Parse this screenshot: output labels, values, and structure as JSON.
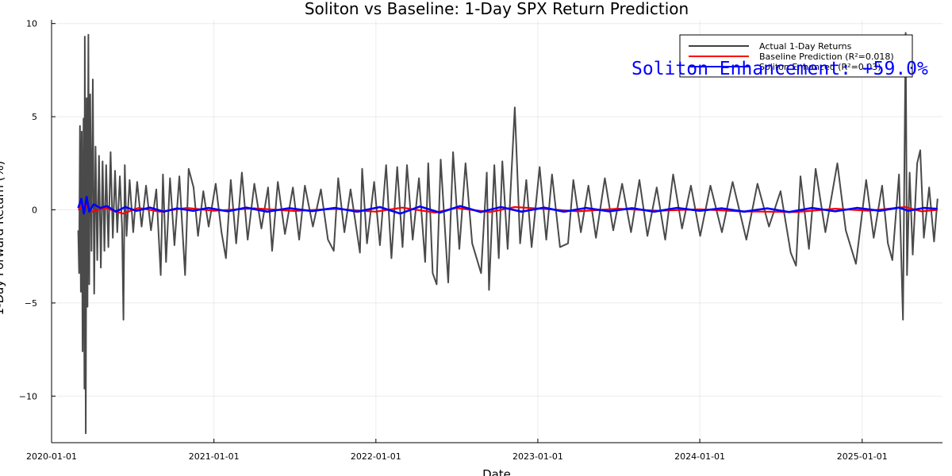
{
  "chart_data": {
    "type": "line",
    "title": "Soliton vs Baseline: 1-Day SPX Return Prediction",
    "xlabel": "Date",
    "ylabel": "1-Day Forward Return (%)",
    "x_range": [
      "2020-01-01",
      "2025-07-01"
    ],
    "ylim": [
      -12.5,
      10.2
    ],
    "x_ticks": [
      "2020-01-01",
      "2021-01-01",
      "2022-01-01",
      "2023-01-01",
      "2024-01-01",
      "2025-01-01"
    ],
    "y_ticks": [
      10,
      5,
      0,
      -5,
      -10
    ],
    "grid": true,
    "legend_position": "top-right",
    "annotation": {
      "text": "Soliton Enhancement: +59.0%",
      "color": "#0000ff"
    },
    "series": [
      {
        "name": "Actual 1-Day Returns",
        "color": "#404040",
        "points": [
          [
            "2020-03-01",
            -1.1
          ],
          [
            "2020-03-03",
            -3.4
          ],
          [
            "2020-03-05",
            4.5
          ],
          [
            "2020-03-07",
            -4.4
          ],
          [
            "2020-03-09",
            4.2
          ],
          [
            "2020-03-11",
            -7.6
          ],
          [
            "2020-03-13",
            4.9
          ],
          [
            "2020-03-15",
            -9.6
          ],
          [
            "2020-03-16",
            9.3
          ],
          [
            "2020-03-18",
            -12.0
          ],
          [
            "2020-03-20",
            6.0
          ],
          [
            "2020-03-22",
            -5.2
          ],
          [
            "2020-03-24",
            9.4
          ],
          [
            "2020-03-26",
            -4.0
          ],
          [
            "2020-03-28",
            6.2
          ],
          [
            "2020-03-31",
            -2.2
          ],
          [
            "2020-04-03",
            7.0
          ],
          [
            "2020-04-06",
            -4.5
          ],
          [
            "2020-04-09",
            3.4
          ],
          [
            "2020-04-13",
            -2.7
          ],
          [
            "2020-04-17",
            2.9
          ],
          [
            "2020-04-21",
            -3.1
          ],
          [
            "2020-04-25",
            2.6
          ],
          [
            "2020-04-29",
            -2.2
          ],
          [
            "2020-05-03",
            2.4
          ],
          [
            "2020-05-08",
            -2.0
          ],
          [
            "2020-05-13",
            3.1
          ],
          [
            "2020-05-18",
            -1.5
          ],
          [
            "2020-05-23",
            2.1
          ],
          [
            "2020-05-28",
            -1.2
          ],
          [
            "2020-06-03",
            1.8
          ],
          [
            "2020-06-08",
            -1.0
          ],
          [
            "2020-06-11",
            -5.9
          ],
          [
            "2020-06-14",
            2.4
          ],
          [
            "2020-06-18",
            -1.4
          ],
          [
            "2020-06-25",
            1.6
          ],
          [
            "2020-07-03",
            -1.2
          ],
          [
            "2020-07-12",
            1.5
          ],
          [
            "2020-07-22",
            -0.9
          ],
          [
            "2020-08-01",
            1.3
          ],
          [
            "2020-08-12",
            -1.1
          ],
          [
            "2020-08-24",
            1.1
          ],
          [
            "2020-09-03",
            -3.5
          ],
          [
            "2020-09-08",
            1.9
          ],
          [
            "2020-09-15",
            -2.8
          ],
          [
            "2020-09-24",
            1.7
          ],
          [
            "2020-10-04",
            -1.9
          ],
          [
            "2020-10-15",
            1.8
          ],
          [
            "2020-10-28",
            -3.5
          ],
          [
            "2020-11-05",
            2.2
          ],
          [
            "2020-11-16",
            1.2
          ],
          [
            "2020-11-26",
            -1.4
          ],
          [
            "2020-12-08",
            1.0
          ],
          [
            "2020-12-20",
            -0.9
          ],
          [
            "2021-01-05",
            1.4
          ],
          [
            "2021-01-18",
            -1.2
          ],
          [
            "2021-01-28",
            -2.6
          ],
          [
            "2021-02-08",
            1.6
          ],
          [
            "2021-02-20",
            -1.8
          ],
          [
            "2021-03-05",
            2.0
          ],
          [
            "2021-03-18",
            -1.6
          ],
          [
            "2021-04-02",
            1.4
          ],
          [
            "2021-04-18",
            -1.0
          ],
          [
            "2021-05-03",
            1.2
          ],
          [
            "2021-05-12",
            -2.2
          ],
          [
            "2021-05-25",
            1.5
          ],
          [
            "2021-06-10",
            -1.3
          ],
          [
            "2021-06-28",
            1.2
          ],
          [
            "2021-07-12",
            -1.6
          ],
          [
            "2021-07-25",
            1.3
          ],
          [
            "2021-08-12",
            -0.9
          ],
          [
            "2021-08-30",
            1.1
          ],
          [
            "2021-09-15",
            -1.6
          ],
          [
            "2021-09-28",
            -2.2
          ],
          [
            "2021-10-08",
            1.7
          ],
          [
            "2021-10-22",
            -1.2
          ],
          [
            "2021-11-05",
            1.1
          ],
          [
            "2021-11-26",
            -2.3
          ],
          [
            "2021-12-01",
            2.2
          ],
          [
            "2021-12-12",
            -1.8
          ],
          [
            "2021-12-28",
            1.5
          ],
          [
            "2022-01-10",
            -1.9
          ],
          [
            "2022-01-24",
            2.4
          ],
          [
            "2022-02-05",
            -2.6
          ],
          [
            "2022-02-18",
            2.3
          ],
          [
            "2022-03-02",
            -2.0
          ],
          [
            "2022-03-12",
            2.4
          ],
          [
            "2022-03-25",
            -1.6
          ],
          [
            "2022-04-08",
            1.7
          ],
          [
            "2022-04-22",
            -2.8
          ],
          [
            "2022-04-29",
            2.5
          ],
          [
            "2022-05-09",
            -3.4
          ],
          [
            "2022-05-18",
            -4.0
          ],
          [
            "2022-05-27",
            2.7
          ],
          [
            "2022-06-13",
            -3.9
          ],
          [
            "2022-06-24",
            3.1
          ],
          [
            "2022-07-08",
            -2.1
          ],
          [
            "2022-07-22",
            2.5
          ],
          [
            "2022-08-06",
            -1.8
          ],
          [
            "2022-08-26",
            -3.4
          ],
          [
            "2022-09-08",
            2.0
          ],
          [
            "2022-09-13",
            -4.3
          ],
          [
            "2022-09-25",
            2.4
          ],
          [
            "2022-10-05",
            -2.6
          ],
          [
            "2022-10-13",
            2.6
          ],
          [
            "2022-10-25",
            -2.1
          ],
          [
            "2022-11-10",
            5.5
          ],
          [
            "2022-11-22",
            -1.8
          ],
          [
            "2022-12-06",
            1.6
          ],
          [
            "2022-12-18",
            -2.0
          ],
          [
            "2023-01-05",
            2.3
          ],
          [
            "2023-01-20",
            -1.6
          ],
          [
            "2023-02-02",
            1.9
          ],
          [
            "2023-02-20",
            -2.0
          ],
          [
            "2023-03-10",
            -1.8
          ],
          [
            "2023-03-22",
            1.6
          ],
          [
            "2023-04-08",
            -1.2
          ],
          [
            "2023-04-25",
            1.3
          ],
          [
            "2023-05-12",
            -1.5
          ],
          [
            "2023-06-01",
            1.7
          ],
          [
            "2023-06-20",
            -1.1
          ],
          [
            "2023-07-10",
            1.4
          ],
          [
            "2023-07-30",
            -1.2
          ],
          [
            "2023-08-18",
            1.6
          ],
          [
            "2023-09-05",
            -1.4
          ],
          [
            "2023-09-26",
            1.2
          ],
          [
            "2023-10-15",
            -1.6
          ],
          [
            "2023-11-02",
            1.9
          ],
          [
            "2023-11-22",
            -1.0
          ],
          [
            "2023-12-12",
            1.3
          ],
          [
            "2024-01-02",
            -1.4
          ],
          [
            "2024-01-25",
            1.3
          ],
          [
            "2024-02-20",
            -1.2
          ],
          [
            "2024-03-15",
            1.5
          ],
          [
            "2024-04-15",
            -1.6
          ],
          [
            "2024-05-10",
            1.4
          ],
          [
            "2024-06-05",
            -0.9
          ],
          [
            "2024-07-01",
            1.0
          ],
          [
            "2024-07-24",
            -2.3
          ],
          [
            "2024-08-05",
            -3.0
          ],
          [
            "2024-08-15",
            1.8
          ],
          [
            "2024-09-03",
            -2.1
          ],
          [
            "2024-09-18",
            2.2
          ],
          [
            "2024-10-10",
            -1.2
          ],
          [
            "2024-11-06",
            2.5
          ],
          [
            "2024-11-25",
            -1.1
          ],
          [
            "2024-12-18",
            -2.9
          ],
          [
            "2025-01-10",
            1.6
          ],
          [
            "2025-01-27",
            -1.5
          ],
          [
            "2025-02-15",
            1.3
          ],
          [
            "2025-02-28",
            -1.8
          ],
          [
            "2025-03-10",
            -2.7
          ],
          [
            "2025-03-25",
            1.9
          ],
          [
            "2025-04-03",
            -5.9
          ],
          [
            "2025-04-09",
            9.5
          ],
          [
            "2025-04-12",
            -3.5
          ],
          [
            "2025-04-18",
            2.0
          ],
          [
            "2025-04-25",
            -2.4
          ],
          [
            "2025-05-05",
            2.5
          ],
          [
            "2025-05-12",
            3.2
          ],
          [
            "2025-05-20",
            -1.5
          ],
          [
            "2025-06-01",
            1.2
          ],
          [
            "2025-06-12",
            -1.7
          ],
          [
            "2025-06-20",
            0.6
          ]
        ]
      },
      {
        "name": "Baseline Prediction (R²=0.018)",
        "color": "#ff0000",
        "points": [
          [
            "2020-03-01",
            0.0
          ],
          [
            "2020-03-15",
            0.3
          ],
          [
            "2020-04-01",
            -0.1
          ],
          [
            "2020-05-01",
            0.1
          ],
          [
            "2020-06-10",
            -0.2
          ],
          [
            "2020-07-15",
            0.1
          ],
          [
            "2020-09-01",
            -0.1
          ],
          [
            "2020-11-01",
            0.1
          ],
          [
            "2021-01-01",
            -0.05
          ],
          [
            "2021-04-01",
            0.08
          ],
          [
            "2021-07-01",
            -0.06
          ],
          [
            "2021-10-01",
            0.05
          ],
          [
            "2022-01-01",
            -0.1
          ],
          [
            "2022-03-01",
            0.12
          ],
          [
            "2022-05-15",
            -0.15
          ],
          [
            "2022-07-01",
            0.1
          ],
          [
            "2022-09-15",
            -0.12
          ],
          [
            "2022-11-10",
            0.15
          ],
          [
            "2023-01-15",
            0.05
          ],
          [
            "2023-04-01",
            -0.08
          ],
          [
            "2023-07-01",
            0.06
          ],
          [
            "2023-10-01",
            -0.05
          ],
          [
            "2024-01-01",
            0.03
          ],
          [
            "2024-04-01",
            -0.08
          ],
          [
            "2024-08-05",
            -0.12
          ],
          [
            "2024-11-01",
            0.06
          ],
          [
            "2025-01-15",
            -0.05
          ],
          [
            "2025-04-08",
            0.15
          ],
          [
            "2025-05-15",
            -0.08
          ],
          [
            "2025-06-20",
            0.0
          ]
        ]
      },
      {
        "name": "Soliton Enhanced (R²=0.03)",
        "color": "#0000ff",
        "points": [
          [
            "2020-03-01",
            0.1
          ],
          [
            "2020-03-08",
            0.6
          ],
          [
            "2020-03-14",
            -0.2
          ],
          [
            "2020-03-20",
            0.7
          ],
          [
            "2020-03-26",
            -0.1
          ],
          [
            "2020-04-05",
            0.3
          ],
          [
            "2020-04-20",
            0.1
          ],
          [
            "2020-05-05",
            0.2
          ],
          [
            "2020-05-25",
            -0.1
          ],
          [
            "2020-06-15",
            0.15
          ],
          [
            "2020-07-10",
            -0.05
          ],
          [
            "2020-08-10",
            0.12
          ],
          [
            "2020-09-10",
            -0.1
          ],
          [
            "2020-10-10",
            0.08
          ],
          [
            "2020-11-15",
            -0.05
          ],
          [
            "2020-12-20",
            0.1
          ],
          [
            "2021-02-01",
            -0.08
          ],
          [
            "2021-03-15",
            0.12
          ],
          [
            "2021-05-01",
            -0.1
          ],
          [
            "2021-06-20",
            0.09
          ],
          [
            "2021-08-10",
            -0.07
          ],
          [
            "2021-10-01",
            0.1
          ],
          [
            "2021-11-20",
            -0.1
          ],
          [
            "2022-01-10",
            0.15
          ],
          [
            "2022-02-25",
            -0.2
          ],
          [
            "2022-04-10",
            0.18
          ],
          [
            "2022-05-25",
            -0.15
          ],
          [
            "2022-07-10",
            0.2
          ],
          [
            "2022-08-25",
            -0.12
          ],
          [
            "2022-10-10",
            0.15
          ],
          [
            "2022-11-25",
            -0.1
          ],
          [
            "2023-01-15",
            0.12
          ],
          [
            "2023-03-01",
            -0.1
          ],
          [
            "2023-04-20",
            0.1
          ],
          [
            "2023-06-10",
            -0.08
          ],
          [
            "2023-08-01",
            0.09
          ],
          [
            "2023-09-20",
            -0.1
          ],
          [
            "2023-11-10",
            0.1
          ],
          [
            "2024-01-01",
            -0.05
          ],
          [
            "2024-02-20",
            0.08
          ],
          [
            "2024-04-10",
            -0.1
          ],
          [
            "2024-06-01",
            0.08
          ],
          [
            "2024-07-20",
            -0.12
          ],
          [
            "2024-09-10",
            0.1
          ],
          [
            "2024-11-01",
            -0.08
          ],
          [
            "2024-12-20",
            0.1
          ],
          [
            "2025-02-10",
            -0.05
          ],
          [
            "2025-03-25",
            0.12
          ],
          [
            "2025-04-15",
            -0.05
          ],
          [
            "2025-05-20",
            0.1
          ],
          [
            "2025-06-20",
            0.05
          ]
        ]
      }
    ]
  }
}
